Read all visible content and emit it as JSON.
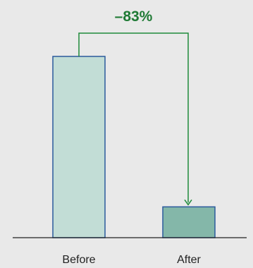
{
  "chart_data": {
    "type": "bar",
    "categories": [
      "Before",
      "After"
    ],
    "values": [
      100,
      17
    ],
    "ylim": [
      0,
      100
    ],
    "annotation": {
      "label": "–83%",
      "from": "Before",
      "to": "After"
    },
    "grid": false,
    "legend": "none"
  },
  "colors": {
    "background": "#e9e9e9",
    "before_bar": "#c2ddd6",
    "after_bar": "#84b7a9",
    "bar_stroke": "#2b5a9c",
    "connector": "#1f8a3a",
    "annotation_text": "#1f7a35",
    "axis": "#222222"
  }
}
